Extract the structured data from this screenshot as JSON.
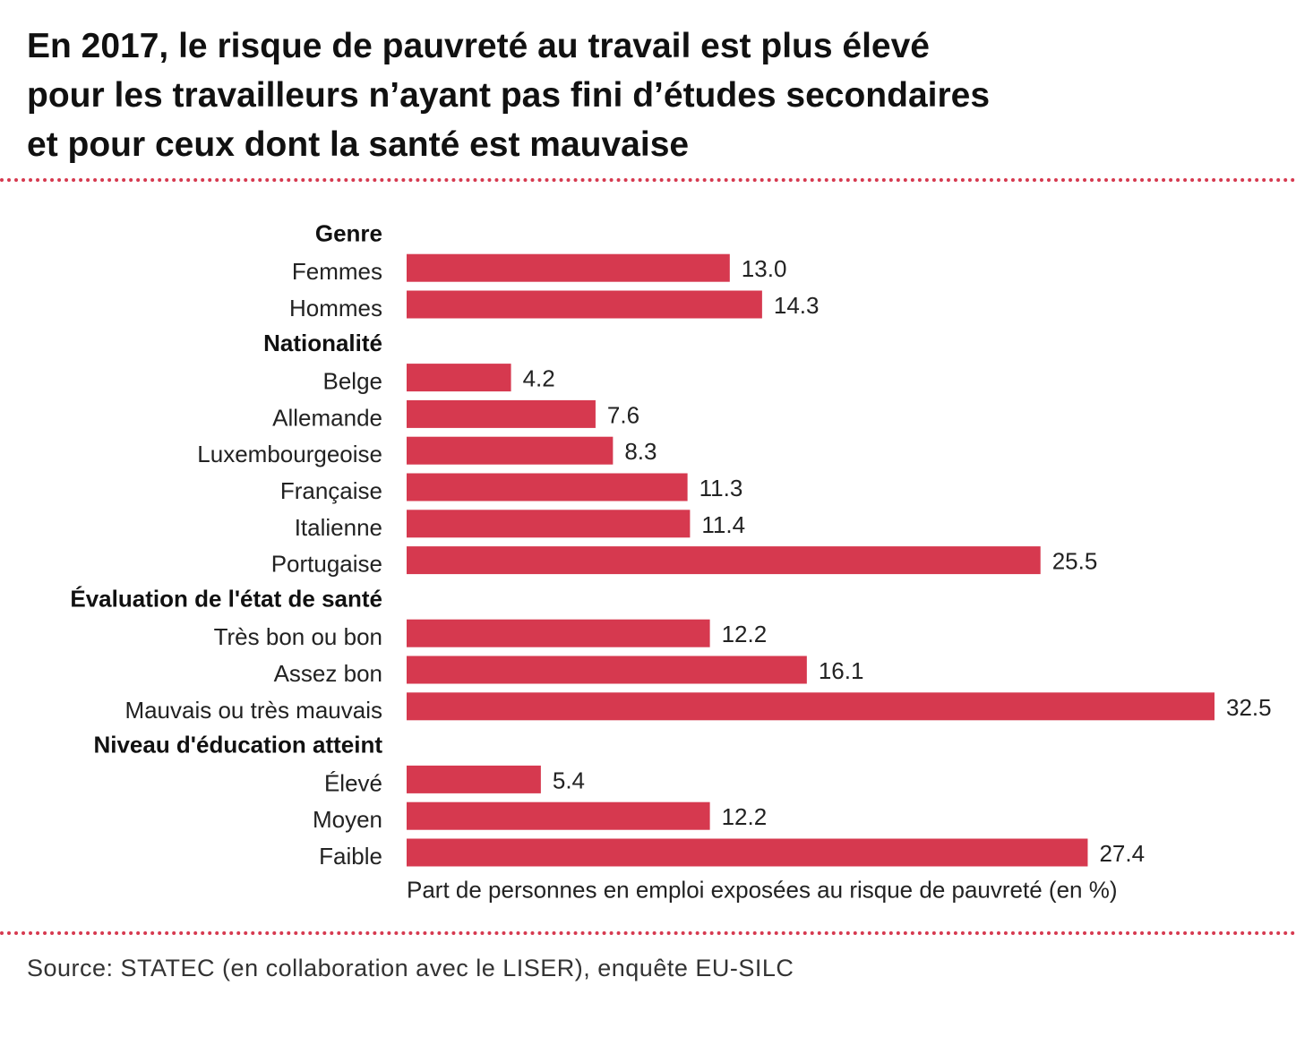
{
  "title_lines": [
    "En 2017, le risque de pauvreté au travail est plus élevé",
    "pour les travailleurs n’ayant pas fini d’études secondaires",
    "et pour ceux dont la santé est mauvaise"
  ],
  "source": "Source: STATEC (en collaboration avec le LISER), enquête EU-SILC",
  "colors": {
    "bar": "#d6394f",
    "dots": "#d6394f",
    "text": "#1a1a1a"
  },
  "chart_data": {
    "type": "bar",
    "orientation": "horizontal",
    "xlabel": "Part de personnes en emploi exposées au risque de pauvreté (en %)",
    "xlim": [
      0,
      32.5
    ],
    "groups": [
      {
        "name": "Genre",
        "categories": [
          "Femmes",
          "Hommes"
        ],
        "values": [
          13.0,
          14.3
        ],
        "labels": [
          "13.0",
          "14.3"
        ]
      },
      {
        "name": "Nationalité",
        "categories": [
          "Belge",
          "Allemande",
          "Luxembourgeoise",
          "Française",
          "Italienne",
          "Portugaise"
        ],
        "values": [
          4.2,
          7.6,
          8.3,
          11.3,
          11.4,
          25.5
        ],
        "labels": [
          "4.2",
          "7.6",
          "8.3",
          "11.3",
          "11.4",
          "25.5"
        ]
      },
      {
        "name": "Évaluation de l'état de santé",
        "categories": [
          "Très bon ou bon",
          "Assez bon",
          "Mauvais ou très mauvais"
        ],
        "values": [
          12.2,
          16.1,
          32.5
        ],
        "labels": [
          "12.2",
          "16.1",
          "32.5"
        ]
      },
      {
        "name": "Niveau d'éducation atteint",
        "categories": [
          "Élevé",
          "Moyen",
          "Faible"
        ],
        "values": [
          5.4,
          12.2,
          27.4
        ],
        "labels": [
          "5.4",
          "12.2",
          "27.4"
        ]
      }
    ]
  }
}
